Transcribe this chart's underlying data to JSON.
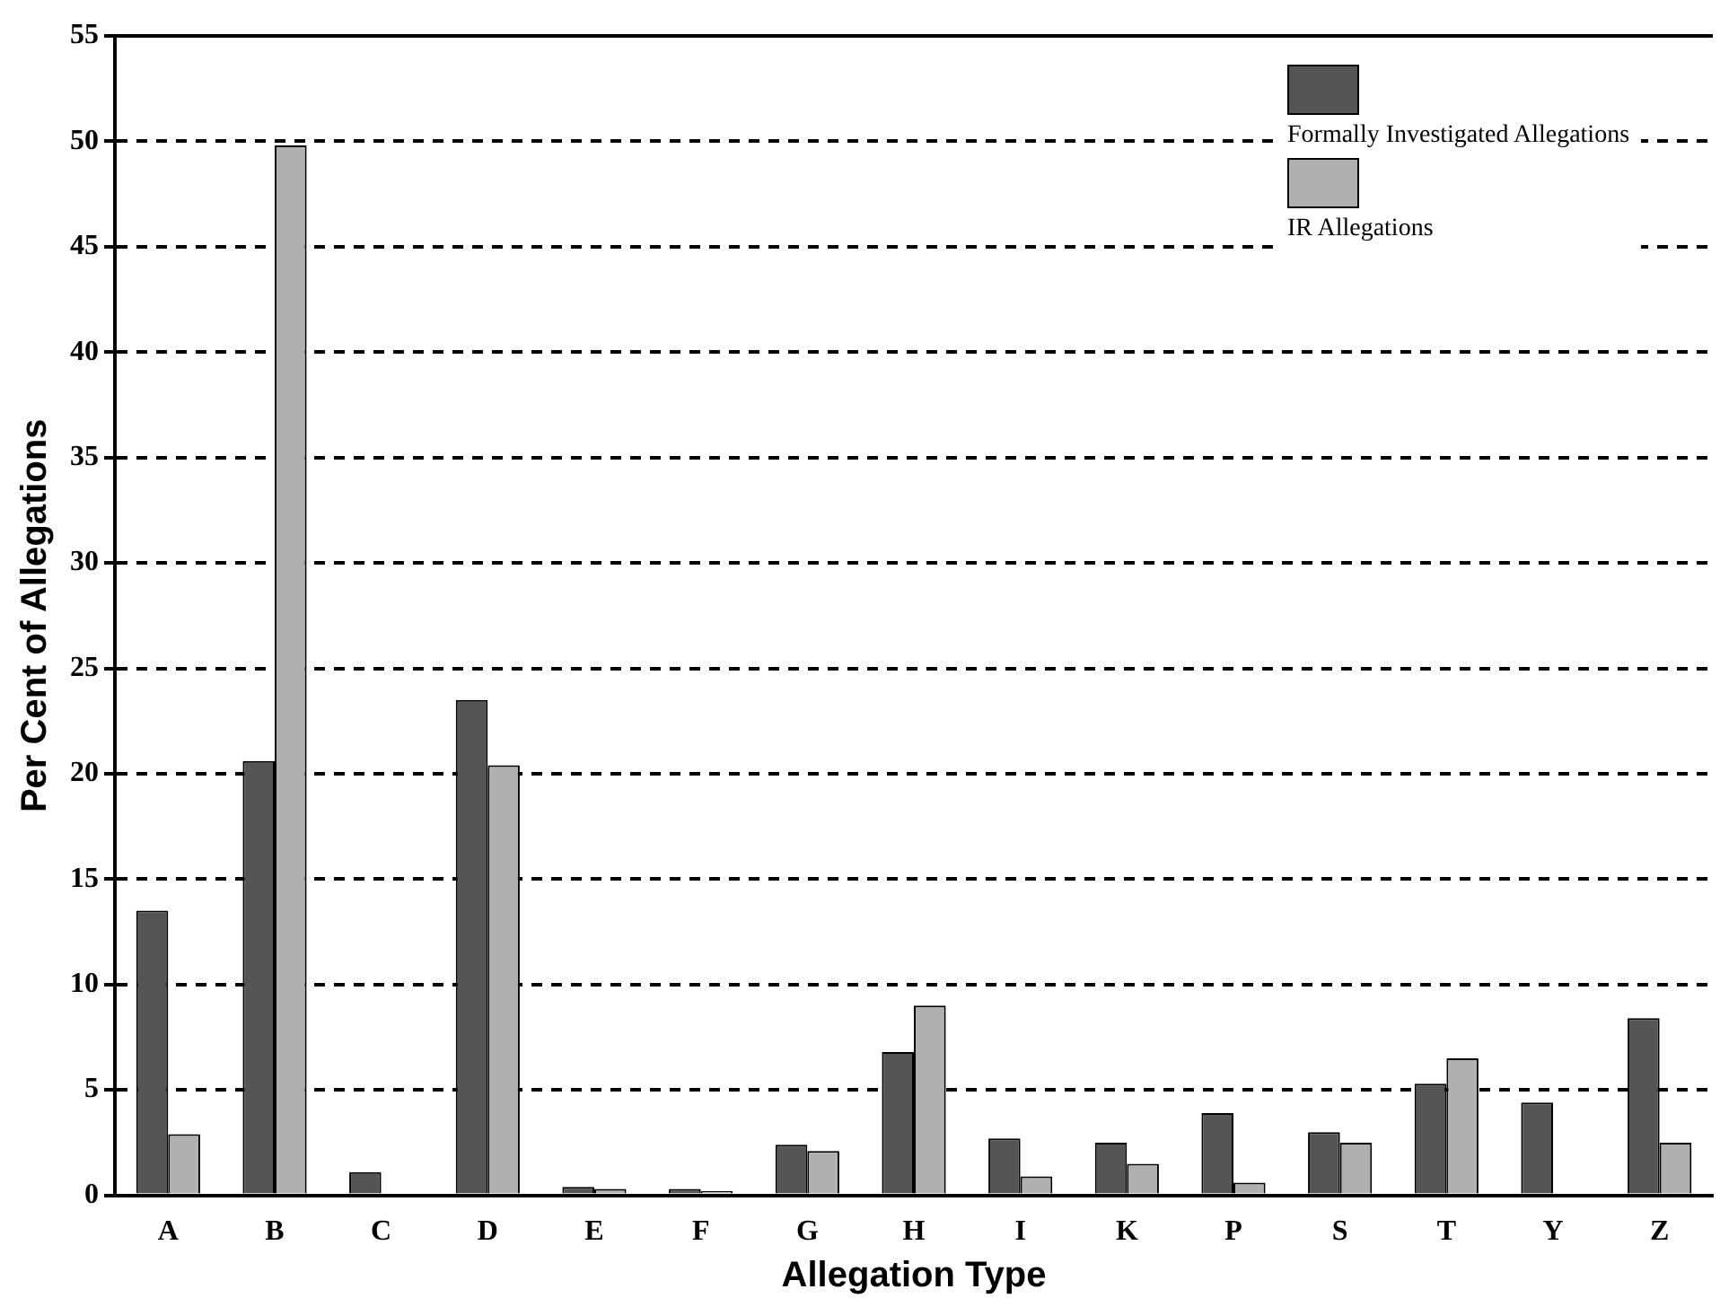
{
  "chart_data": {
    "type": "bar",
    "xlabel": "Allegation Type",
    "ylabel": "Per Cent of Allegations",
    "categories": [
      "A",
      "B",
      "C",
      "D",
      "E",
      "F",
      "G",
      "H",
      "I",
      "K",
      "P",
      "S",
      "T",
      "Y",
      "Z"
    ],
    "series": [
      {
        "name": "Formally Investigated Allegations",
        "color": "#555555",
        "values": [
          13.5,
          20.6,
          1.1,
          23.5,
          0.4,
          0.3,
          2.4,
          6.8,
          2.7,
          2.5,
          3.9,
          3.0,
          5.3,
          4.4,
          8.4
        ]
      },
      {
        "name": "IR Allegations",
        "color": "#b0b0b0",
        "values": [
          2.9,
          49.8,
          0,
          20.4,
          0.3,
          0.2,
          2.1,
          9.0,
          0.9,
          1.5,
          0.6,
          2.5,
          6.5,
          0,
          2.5
        ]
      }
    ],
    "ylim": [
      0,
      55
    ],
    "yticks": [
      0,
      5,
      10,
      15,
      20,
      25,
      30,
      35,
      40,
      45,
      50,
      55
    ],
    "grid": "y",
    "legend": "top right"
  }
}
